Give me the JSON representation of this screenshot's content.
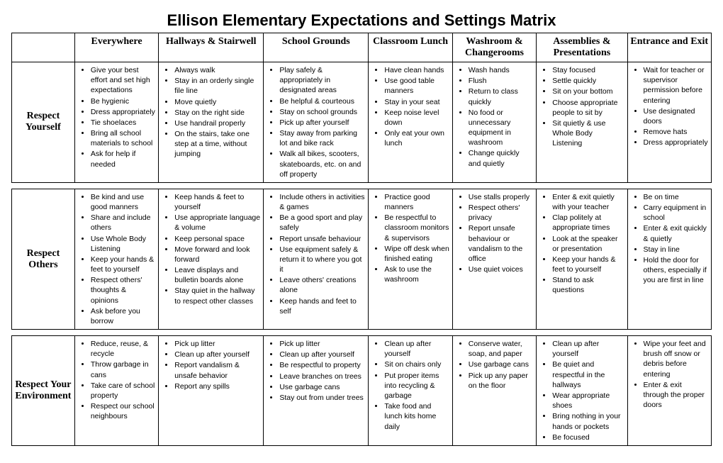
{
  "title": "Ellison Elementary Expectations and Settings Matrix",
  "columns": [
    "Everywhere",
    "Hallways & Stairwell",
    "School Grounds",
    "Classroom Lunch",
    "Washroom & Changerooms",
    "Assemblies & Presentations",
    "Entrance and Exit"
  ],
  "sections": [
    {
      "label": "Respect Yourself",
      "cells": [
        [
          "Give your best effort and set high expectations",
          "Be hygienic",
          "Dress appropriately",
          "Tie shoelaces",
          "Bring all school materials to school",
          "Ask for help if needed"
        ],
        [
          "Always walk",
          "Stay in an orderly single file line",
          "Move quietly",
          "Stay on the right side",
          "Use handrail properly",
          "On the stairs, take one step at a time, without jumping"
        ],
        [
          "Play safely & appropriately in designated areas",
          "Be helpful & courteous",
          "Stay on school grounds",
          "Pick up after yourself",
          "Stay away from parking lot and bike rack",
          "Walk all bikes, scooters, skateboards, etc. on and off property"
        ],
        [
          "Have clean hands",
          "Use good table manners",
          "Stay in your seat",
          "Keep noise level down",
          "Only eat your own lunch"
        ],
        [
          "Wash hands",
          "Flush",
          "Return to class quickly",
          "No food or unnecessary equipment in washroom",
          "Change quickly and quietly"
        ],
        [
          "Stay focused",
          "Settle quickly",
          "Sit on your bottom",
          "Choose appropriate people to sit by",
          "Sit quietly & use Whole Body Listening"
        ],
        [
          "Wait for teacher or supervisor permission before entering",
          "Use designated doors",
          "Remove hats",
          "Dress appropriately"
        ]
      ]
    },
    {
      "label": "Respect Others",
      "cells": [
        [
          "Be kind and use good manners",
          "Share and include others",
          "Use Whole Body Listening",
          "Keep your hands & feet to yourself",
          "Respect others' thoughts & opinions",
          "Ask before you borrow"
        ],
        [
          "Keep hands & feet to yourself",
          "Use appropriate language & volume",
          "Keep personal space",
          "Move forward and look forward",
          "Leave displays and bulletin boards alone",
          "Stay quiet in the hallway to respect other classes"
        ],
        [
          "Include others in activities & games",
          "Be a good sport and play safely",
          "Report unsafe behaviour",
          "Use equipment safely & return it to where you got it",
          "Leave others' creations alone",
          "Keep hands and feet to self"
        ],
        [
          "Practice good manners",
          "Be respectful to classroom monitors & supervisors",
          "Wipe off desk when finished eating",
          "Ask to use the washroom"
        ],
        [
          "Use stalls properly",
          "Respect others' privacy",
          "Report unsafe behaviour or vandalism to the office",
          "Use quiet voices"
        ],
        [
          "Enter & exit quietly with your teacher",
          "Clap politely at appropriate times",
          "Look at the speaker or presentation",
          "Keep your hands & feet to yourself",
          "Stand to ask questions"
        ],
        [
          "Be on time",
          "Carry equipment in school",
          "Enter & exit quickly & quietly",
          "Stay in line",
          "Hold the door for others, especially if you are first in line"
        ]
      ]
    },
    {
      "label": "Respect Your Environment",
      "cells": [
        [
          "Reduce, reuse, & recycle",
          "Throw garbage in cans",
          "Take care of school property",
          "Respect our school neighbours"
        ],
        [
          "Pick up litter",
          "Clean up after yourself",
          "Report vandalism & unsafe behavior",
          "Report any spills"
        ],
        [
          "Pick up litter",
          "Clean up after yourself",
          "Be respectful to property",
          "Leave branches on trees",
          "Use garbage cans",
          "Stay out from under trees"
        ],
        [
          "Clean up after yourself",
          "Sit on chairs only",
          "Put proper items into recycling & garbage",
          "Take food and lunch kits home daily"
        ],
        [
          "Conserve water, soap, and paper",
          "Use garbage cans",
          "Pick up any paper on the floor"
        ],
        [
          "Clean up after yourself",
          "Be quiet and respectful in the hallways",
          "Wear appropriate shoes",
          "Bring nothing in your hands or pockets",
          "Be focused"
        ],
        [
          "Wipe your feet and brush off snow or debris before entering",
          "Enter & exit through the proper doors"
        ]
      ]
    }
  ]
}
